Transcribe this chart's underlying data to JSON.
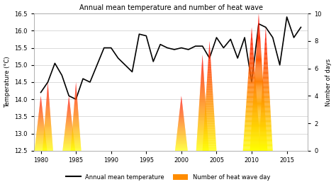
{
  "title": "Annual mean temperature and number of heat wave",
  "ylabel_left": "Temperature (°C)",
  "ylabel_right": "Number of days",
  "xlim": [
    1979,
    2018
  ],
  "ylim_left": [
    12.5,
    16.5
  ],
  "ylim_right": [
    0,
    10
  ],
  "years": [
    1980,
    1981,
    1982,
    1983,
    1984,
    1985,
    1986,
    1987,
    1988,
    1989,
    1990,
    1991,
    1992,
    1993,
    1994,
    1995,
    1996,
    1997,
    1998,
    1999,
    2000,
    2001,
    2002,
    2003,
    2004,
    2005,
    2006,
    2007,
    2008,
    2009,
    2010,
    2011,
    2012,
    2013,
    2014,
    2015,
    2016,
    2017
  ],
  "temperatures": [
    14.2,
    14.5,
    15.05,
    14.7,
    14.1,
    14.0,
    14.6,
    14.5,
    15.0,
    15.5,
    15.5,
    15.2,
    15.0,
    14.8,
    15.9,
    15.85,
    15.1,
    15.6,
    15.5,
    15.45,
    15.5,
    15.45,
    15.55,
    15.55,
    15.2,
    15.8,
    15.5,
    15.75,
    15.2,
    15.8,
    14.5,
    16.2,
    16.1,
    15.8,
    15.0,
    16.4,
    15.8,
    16.1
  ],
  "heatwave_years": [
    1980,
    1981,
    1984,
    1985,
    2000,
    2003,
    2004,
    2010,
    2011,
    2012
  ],
  "heatwave_days": [
    4,
    5,
    4,
    5,
    4,
    7,
    8,
    9,
    10,
    9
  ],
  "heatwave_widths": [
    1.8,
    1.5,
    1.8,
    1.5,
    1.8,
    1.8,
    2.0,
    2.5,
    2.5,
    2.0
  ],
  "legend_labels": [
    "Annual mean temperature",
    "Number of heat wave day"
  ],
  "bg_color": "#ffffff",
  "line_color": "black",
  "xticks": [
    1980,
    1985,
    1990,
    1995,
    2000,
    2005,
    2010,
    2015
  ],
  "yticks_left": [
    12.5,
    13.0,
    13.5,
    14.0,
    14.5,
    15.0,
    15.5,
    16.0,
    16.5
  ],
  "yticks_right": [
    0,
    2,
    4,
    6,
    8,
    10
  ]
}
